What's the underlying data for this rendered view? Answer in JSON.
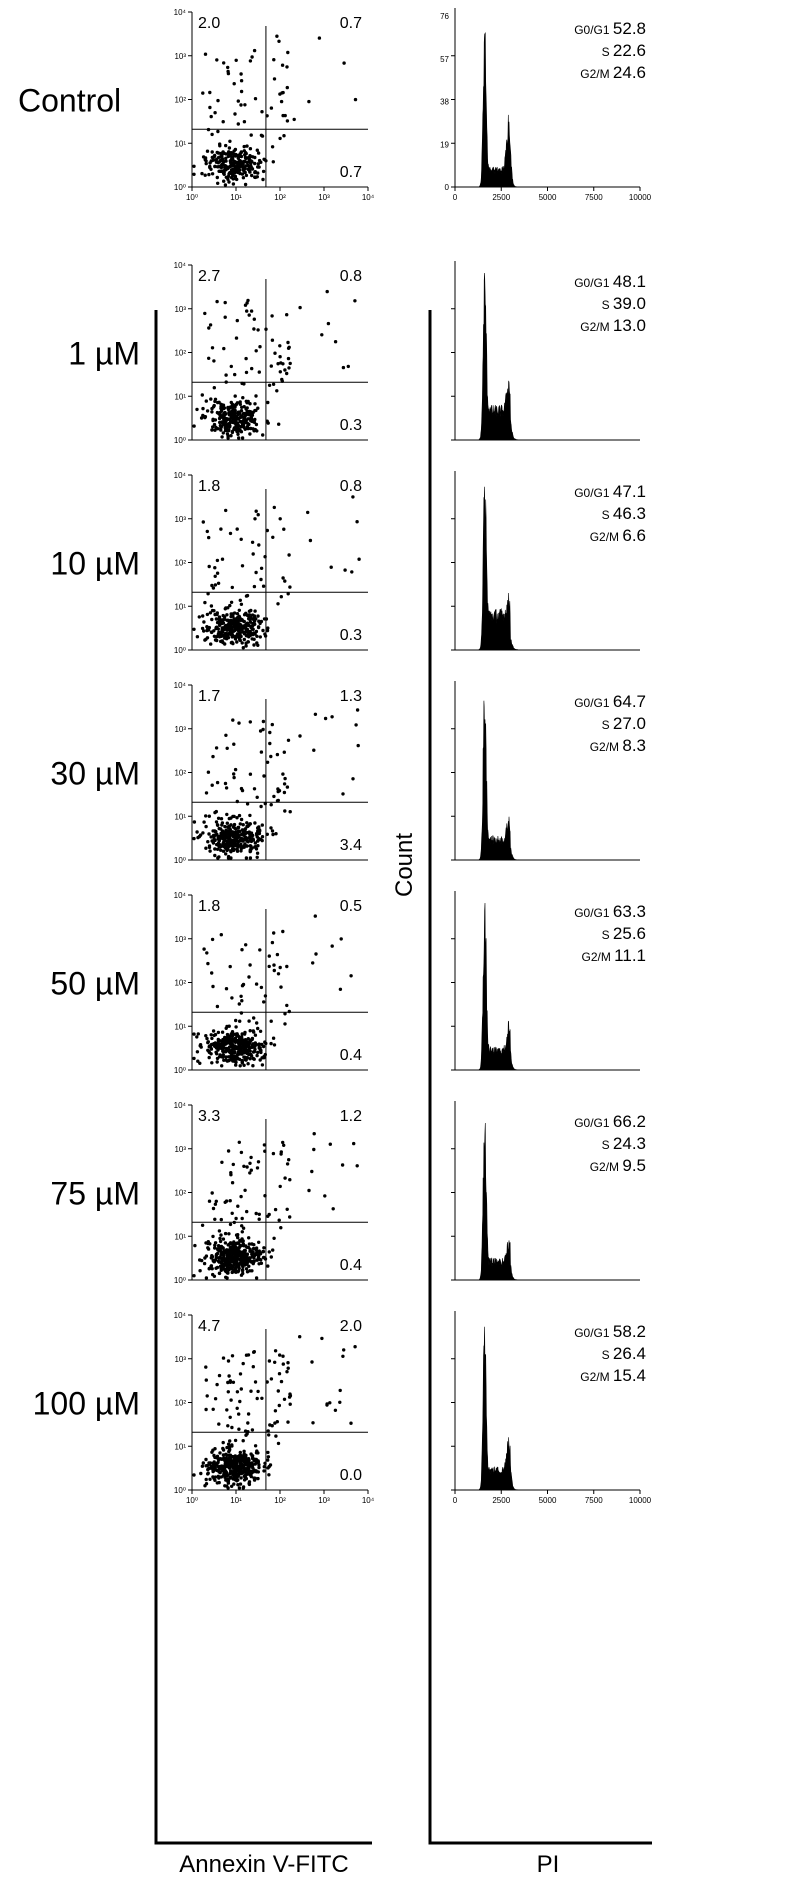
{
  "figure": {
    "x_axis_label": "Annexin V-FITC",
    "hist_axis_label": "PI",
    "count_label": "Count"
  },
  "axes": {
    "scatter_ticks": [
      "10⁰",
      "10¹",
      "10²",
      "10³",
      "10⁴"
    ],
    "hist_x_ticks": [
      "0",
      "2500",
      "5000",
      "7500",
      "10000"
    ],
    "hist_y_ticks_control": [
      "0",
      "19",
      "38",
      "57",
      "76"
    ],
    "hist_x_range": [
      0,
      10000
    ],
    "scatter_log_range": [
      1,
      10000
    ]
  },
  "chart_data": [
    {
      "type": "scatter",
      "panel": "Control",
      "xlabel": "Annexin V-FITC",
      "log_scale": true,
      "xlim": [
        1,
        10000
      ],
      "ylim": [
        1,
        10000
      ],
      "quadrants": {
        "top_left": "2.0",
        "top_right": "0.7",
        "bottom_right": "0.7"
      }
    },
    {
      "type": "histogram",
      "panel": "Control",
      "xlabel": "PI",
      "ylabel": "Count",
      "xlim": [
        0,
        10000
      ],
      "ylim": [
        0,
        76
      ],
      "cell_cycle": [
        {
          "phase": "G0/G1",
          "value": "52.8"
        },
        {
          "phase": "S",
          "value": "22.6"
        },
        {
          "phase": "G2/M",
          "value": "24.6"
        }
      ]
    },
    {
      "type": "scatter",
      "panel": "1 µM",
      "xlabel": "Annexin V-FITC",
      "log_scale": true,
      "quadrants": {
        "top_left": "2.7",
        "top_right": "0.8",
        "bottom_right": "0.3"
      }
    },
    {
      "type": "histogram",
      "panel": "1 µM",
      "xlabel": "PI",
      "ylabel": "Count",
      "cell_cycle": [
        {
          "phase": "G0/G1",
          "value": "48.1"
        },
        {
          "phase": "S",
          "value": "39.0"
        },
        {
          "phase": "G2/M",
          "value": "13.0"
        }
      ]
    },
    {
      "type": "scatter",
      "panel": "10 µM",
      "xlabel": "Annexin V-FITC",
      "log_scale": true,
      "quadrants": {
        "top_left": "1.8",
        "top_right": "0.8",
        "bottom_right": "0.3"
      }
    },
    {
      "type": "histogram",
      "panel": "10 µM",
      "xlabel": "PI",
      "ylabel": "Count",
      "cell_cycle": [
        {
          "phase": "G0/G1",
          "value": "47.1"
        },
        {
          "phase": "S",
          "value": "46.3"
        },
        {
          "phase": "G2/M",
          "value": "6.6"
        }
      ]
    },
    {
      "type": "scatter",
      "panel": "30 µM",
      "xlabel": "Annexin V-FITC",
      "log_scale": true,
      "quadrants": {
        "top_left": "1.7",
        "top_right": "1.3",
        "bottom_right": "3.4"
      }
    },
    {
      "type": "histogram",
      "panel": "30 µM",
      "xlabel": "PI",
      "ylabel": "Count",
      "cell_cycle": [
        {
          "phase": "G0/G1",
          "value": "64.7"
        },
        {
          "phase": "S",
          "value": "27.0"
        },
        {
          "phase": "G2/M",
          "value": "8.3"
        }
      ]
    },
    {
      "type": "scatter",
      "panel": "50 µM",
      "xlabel": "Annexin V-FITC",
      "log_scale": true,
      "quadrants": {
        "top_left": "1.8",
        "top_right": "0.5",
        "bottom_right": "0.4"
      }
    },
    {
      "type": "histogram",
      "panel": "50 µM",
      "xlabel": "PI",
      "ylabel": "Count",
      "cell_cycle": [
        {
          "phase": "G0/G1",
          "value": "63.3"
        },
        {
          "phase": "S",
          "value": "25.6"
        },
        {
          "phase": "G2/M",
          "value": "11.1"
        }
      ]
    },
    {
      "type": "scatter",
      "panel": "75 µM",
      "xlabel": "Annexin V-FITC",
      "log_scale": true,
      "quadrants": {
        "top_left": "3.3",
        "top_right": "1.2",
        "bottom_right": "0.4"
      }
    },
    {
      "type": "histogram",
      "panel": "75 µM",
      "xlabel": "PI",
      "ylabel": "Count",
      "cell_cycle": [
        {
          "phase": "G0/G1",
          "value": "66.2"
        },
        {
          "phase": "S",
          "value": "24.3"
        },
        {
          "phase": "G2/M",
          "value": "9.5"
        }
      ]
    },
    {
      "type": "scatter",
      "panel": "100 µM",
      "xlabel": "Annexin V-FITC",
      "log_scale": true,
      "quadrants": {
        "top_left": "4.7",
        "top_right": "2.0",
        "bottom_right": "0.0"
      }
    },
    {
      "type": "histogram",
      "panel": "100 µM",
      "xlabel": "PI",
      "ylabel": "Count",
      "cell_cycle": [
        {
          "phase": "G0/G1",
          "value": "58.2"
        },
        {
          "phase": "S",
          "value": "26.4"
        },
        {
          "phase": "G2/M",
          "value": "15.4"
        }
      ]
    }
  ],
  "rows": [
    {
      "label": "Control",
      "tl": "2.0",
      "tr": "0.7",
      "br": "0.7",
      "g0g1": "52.8",
      "s": "22.6",
      "g2m": "24.6"
    },
    {
      "label": "1 µM",
      "tl": "2.7",
      "tr": "0.8",
      "br": "0.3",
      "g0g1": "48.1",
      "s": "39.0",
      "g2m": "13.0"
    },
    {
      "label": "10 µM",
      "tl": "1.8",
      "tr": "0.8",
      "br": "0.3",
      "g0g1": "47.1",
      "s": "46.3",
      "g2m": "6.6"
    },
    {
      "label": "30 µM",
      "tl": "1.7",
      "tr": "1.3",
      "br": "3.4",
      "g0g1": "64.7",
      "s": "27.0",
      "g2m": "8.3"
    },
    {
      "label": "50 µM",
      "tl": "1.8",
      "tr": "0.5",
      "br": "0.4",
      "g0g1": "63.3",
      "s": "25.6",
      "g2m": "11.1"
    },
    {
      "label": "75 µM",
      "tl": "3.3",
      "tr": "1.2",
      "br": "0.4",
      "g0g1": "66.2",
      "s": "24.3",
      "g2m": "9.5"
    },
    {
      "label": "100 µM",
      "tl": "4.7",
      "tr": "2.0",
      "br": "0.0",
      "g0g1": "58.2",
      "s": "26.4",
      "g2m": "15.4"
    }
  ],
  "phase_labels": {
    "g0g1": "G0/G1",
    "s": "S",
    "g2m": "G2/M"
  }
}
